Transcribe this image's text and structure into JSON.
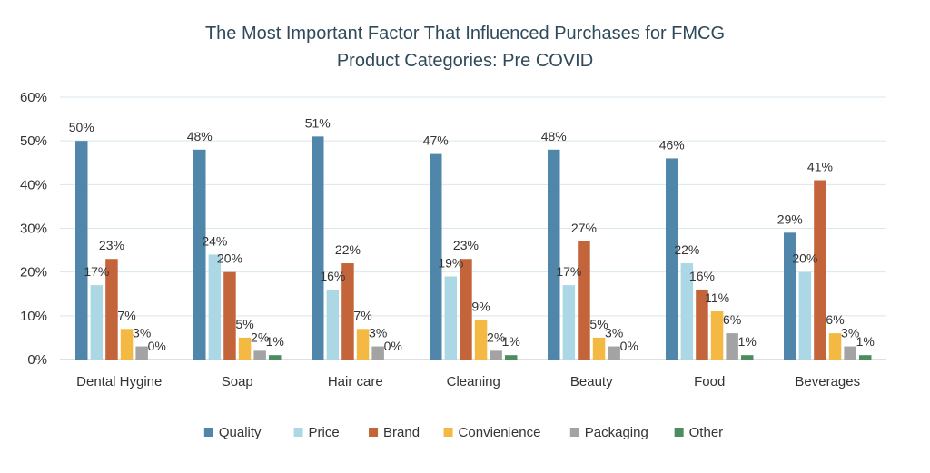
{
  "chart_data": {
    "type": "bar",
    "title": [
      "The Most Important Factor That Influenced Purchases for FMCG",
      "Product Categories: Pre COVID"
    ],
    "categories": [
      "Dental Hygine",
      "Soap",
      "Hair care",
      "Cleaning",
      "Beauty",
      "Food",
      "Beverages"
    ],
    "series": [
      {
        "name": "Quality",
        "color": "#4f86aa",
        "values": [
          50,
          48,
          51,
          47,
          48,
          46,
          29
        ]
      },
      {
        "name": "Price",
        "color": "#acd8e6",
        "values": [
          17,
          24,
          16,
          19,
          17,
          22,
          20
        ]
      },
      {
        "name": "Brand",
        "color": "#c4643a",
        "values": [
          23,
          20,
          22,
          23,
          27,
          16,
          41
        ]
      },
      {
        "name": "Convienience",
        "color": "#f4b942",
        "values": [
          7,
          5,
          7,
          9,
          5,
          11,
          6
        ]
      },
      {
        "name": "Packaging",
        "color": "#a3a3a3",
        "values": [
          3,
          2,
          3,
          2,
          3,
          6,
          3
        ]
      },
      {
        "name": "Other",
        "color": "#4d8c5f",
        "values": [
          0,
          1,
          0,
          1,
          0,
          1,
          1
        ]
      }
    ],
    "value_format": "percent",
    "ylim": [
      0,
      60
    ],
    "yticks": [
      0,
      10,
      20,
      30,
      40,
      50,
      60
    ],
    "grid": true,
    "legend": "bottom"
  }
}
